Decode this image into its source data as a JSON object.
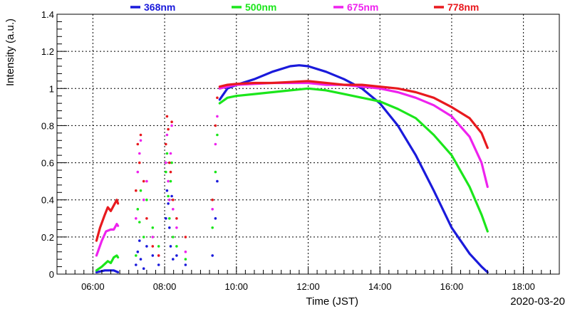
{
  "chart_data": {
    "type": "scatter",
    "title": "",
    "xlabel": "Time (JST)",
    "ylabel": "Intensity (a.u.)",
    "date_label": "2020-03-20",
    "xlim": [
      "05:00",
      "19:00"
    ],
    "ylim": [
      0,
      1.4
    ],
    "x_ticks": [
      "06:00",
      "08:00",
      "10:00",
      "12:00",
      "14:00",
      "16:00",
      "18:00"
    ],
    "y_ticks": [
      "0",
      "0.2",
      "0.4",
      "0.6",
      "0.8",
      "1",
      "1.2",
      "1.4"
    ],
    "grid": true,
    "legend_position": "top",
    "series": [
      {
        "name": "368nm",
        "color": "#1a1adb",
        "segments": [
          [
            [
              "06:06",
              0.01
            ],
            [
              "06:20",
              0.02
            ],
            [
              "06:35",
              0.02
            ],
            [
              "06:42",
              0.01
            ]
          ],
          [
            [
              "09:32",
              0.94
            ],
            [
              "09:45",
              1.0
            ],
            [
              "10:00",
              1.02
            ],
            [
              "10:30",
              1.05
            ],
            [
              "11:00",
              1.09
            ],
            [
              "11:30",
              1.12
            ],
            [
              "11:45",
              1.125
            ],
            [
              "12:00",
              1.12
            ],
            [
              "12:30",
              1.09
            ],
            [
              "13:00",
              1.05
            ],
            [
              "13:30",
              1.0
            ],
            [
              "14:00",
              0.92
            ],
            [
              "14:30",
              0.8
            ],
            [
              "15:00",
              0.64
            ],
            [
              "15:30",
              0.45
            ],
            [
              "16:00",
              0.25
            ],
            [
              "16:30",
              0.11
            ],
            [
              "16:50",
              0.04
            ],
            [
              "17:00",
              0.01
            ]
          ]
        ],
        "scatter": [
          [
            "07:12",
            0.05
          ],
          [
            "07:15",
            0.12
          ],
          [
            "07:18",
            0.18
          ],
          [
            "07:20",
            0.08
          ],
          [
            "07:25",
            0.03
          ],
          [
            "07:30",
            0.15
          ],
          [
            "07:40",
            0.1
          ],
          [
            "07:50",
            0.05
          ],
          [
            "08:02",
            0.3
          ],
          [
            "08:04",
            0.45
          ],
          [
            "08:06",
            0.38
          ],
          [
            "08:08",
            0.25
          ],
          [
            "08:10",
            0.15
          ],
          [
            "08:12",
            0.42
          ],
          [
            "08:14",
            0.08
          ],
          [
            "08:20",
            0.1
          ],
          [
            "08:35",
            0.05
          ],
          [
            "09:20",
            0.1
          ],
          [
            "09:25",
            0.3
          ],
          [
            "09:28",
            0.5
          ]
        ]
      },
      {
        "name": "500nm",
        "color": "#1be61b",
        "segments": [
          [
            [
              "06:06",
              0.02
            ],
            [
              "06:15",
              0.04
            ],
            [
              "06:25",
              0.07
            ],
            [
              "06:30",
              0.06
            ],
            [
              "06:35",
              0.09
            ],
            [
              "06:40",
              0.1
            ],
            [
              "06:42",
              0.09
            ]
          ],
          [
            [
              "09:32",
              0.92
            ],
            [
              "09:45",
              0.95
            ],
            [
              "10:00",
              0.96
            ],
            [
              "10:30",
              0.97
            ],
            [
              "11:00",
              0.98
            ],
            [
              "11:30",
              0.99
            ],
            [
              "12:00",
              1.0
            ],
            [
              "12:30",
              0.99
            ],
            [
              "13:00",
              0.97
            ],
            [
              "13:30",
              0.95
            ],
            [
              "14:00",
              0.93
            ],
            [
              "14:30",
              0.89
            ],
            [
              "15:00",
              0.84
            ],
            [
              "15:30",
              0.75
            ],
            [
              "16:00",
              0.64
            ],
            [
              "16:30",
              0.47
            ],
            [
              "16:50",
              0.32
            ],
            [
              "17:00",
              0.23
            ]
          ]
        ],
        "scatter": [
          [
            "07:12",
            0.1
          ],
          [
            "07:15",
            0.35
          ],
          [
            "07:18",
            0.28
          ],
          [
            "07:20",
            0.45
          ],
          [
            "07:25",
            0.2
          ],
          [
            "07:30",
            0.4
          ],
          [
            "07:40",
            0.25
          ],
          [
            "07:50",
            0.15
          ],
          [
            "08:02",
            0.55
          ],
          [
            "08:04",
            0.65
          ],
          [
            "08:06",
            0.42
          ],
          [
            "08:08",
            0.3
          ],
          [
            "08:10",
            0.5
          ],
          [
            "08:12",
            0.6
          ],
          [
            "08:14",
            0.2
          ],
          [
            "08:20",
            0.15
          ],
          [
            "08:35",
            0.08
          ],
          [
            "09:20",
            0.25
          ],
          [
            "09:25",
            0.55
          ],
          [
            "09:28",
            0.75
          ]
        ]
      },
      {
        "name": "675nm",
        "color": "#ee22ee",
        "segments": [
          [
            [
              "06:06",
              0.1
            ],
            [
              "06:15",
              0.18
            ],
            [
              "06:22",
              0.23
            ],
            [
              "06:30",
              0.24
            ],
            [
              "06:35",
              0.24
            ],
            [
              "06:40",
              0.27
            ],
            [
              "06:42",
              0.26
            ]
          ],
          [
            [
              "09:32",
              1.0
            ],
            [
              "09:45",
              1.01
            ],
            [
              "10:00",
              1.02
            ],
            [
              "10:30",
              1.025
            ],
            [
              "11:00",
              1.03
            ],
            [
              "11:30",
              1.03
            ],
            [
              "12:00",
              1.03
            ],
            [
              "12:30",
              1.02
            ],
            [
              "13:00",
              1.02
            ],
            [
              "13:30",
              1.01
            ],
            [
              "14:00",
              1.0
            ],
            [
              "14:30",
              0.98
            ],
            [
              "15:00",
              0.95
            ],
            [
              "15:30",
              0.91
            ],
            [
              "16:00",
              0.85
            ],
            [
              "16:30",
              0.74
            ],
            [
              "16:50",
              0.6
            ],
            [
              "17:00",
              0.47
            ]
          ]
        ],
        "scatter": [
          [
            "07:12",
            0.3
          ],
          [
            "07:15",
            0.55
          ],
          [
            "07:18",
            0.65
          ],
          [
            "07:20",
            0.72
          ],
          [
            "07:25",
            0.4
          ],
          [
            "07:30",
            0.5
          ],
          [
            "07:40",
            0.2
          ],
          [
            "07:50",
            0.1
          ],
          [
            "08:02",
            0.6
          ],
          [
            "08:04",
            0.75
          ],
          [
            "08:06",
            0.5
          ],
          [
            "08:08",
            0.4
          ],
          [
            "08:10",
            0.65
          ],
          [
            "08:12",
            0.8
          ],
          [
            "08:14",
            0.35
          ],
          [
            "08:20",
            0.25
          ],
          [
            "08:35",
            0.12
          ],
          [
            "09:20",
            0.35
          ],
          [
            "09:25",
            0.7
          ],
          [
            "09:28",
            0.85
          ]
        ]
      },
      {
        "name": "778nm",
        "color": "#e8191e",
        "segments": [
          [
            [
              "06:06",
              0.18
            ],
            [
              "06:12",
              0.25
            ],
            [
              "06:20",
              0.32
            ],
            [
              "06:25",
              0.36
            ],
            [
              "06:30",
              0.34
            ],
            [
              "06:35",
              0.37
            ],
            [
              "06:40",
              0.4
            ],
            [
              "06:42",
              0.38
            ]
          ],
          [
            [
              "09:32",
              1.01
            ],
            [
              "09:45",
              1.02
            ],
            [
              "10:00",
              1.025
            ],
            [
              "10:30",
              1.03
            ],
            [
              "11:00",
              1.03
            ],
            [
              "11:30",
              1.035
            ],
            [
              "12:00",
              1.04
            ],
            [
              "12:30",
              1.03
            ],
            [
              "13:00",
              1.02
            ],
            [
              "13:30",
              1.02
            ],
            [
              "14:00",
              1.01
            ],
            [
              "14:30",
              1.0
            ],
            [
              "15:00",
              0.98
            ],
            [
              "15:30",
              0.95
            ],
            [
              "16:00",
              0.9
            ],
            [
              "16:30",
              0.84
            ],
            [
              "16:50",
              0.76
            ],
            [
              "17:00",
              0.68
            ]
          ]
        ],
        "scatter": [
          [
            "07:12",
            0.45
          ],
          [
            "07:15",
            0.7
          ],
          [
            "07:18",
            0.6
          ],
          [
            "07:20",
            0.75
          ],
          [
            "07:25",
            0.5
          ],
          [
            "07:30",
            0.3
          ],
          [
            "07:40",
            0.15
          ],
          [
            "07:50",
            0.1
          ],
          [
            "08:02",
            0.7
          ],
          [
            "08:04",
            0.85
          ],
          [
            "08:06",
            0.78
          ],
          [
            "08:08",
            0.6
          ],
          [
            "08:10",
            0.55
          ],
          [
            "08:12",
            0.82
          ],
          [
            "08:14",
            0.4
          ],
          [
            "08:20",
            0.3
          ],
          [
            "08:35",
            0.2
          ],
          [
            "09:20",
            0.4
          ],
          [
            "09:25",
            0.8
          ],
          [
            "09:28",
            0.95
          ]
        ]
      }
    ]
  }
}
